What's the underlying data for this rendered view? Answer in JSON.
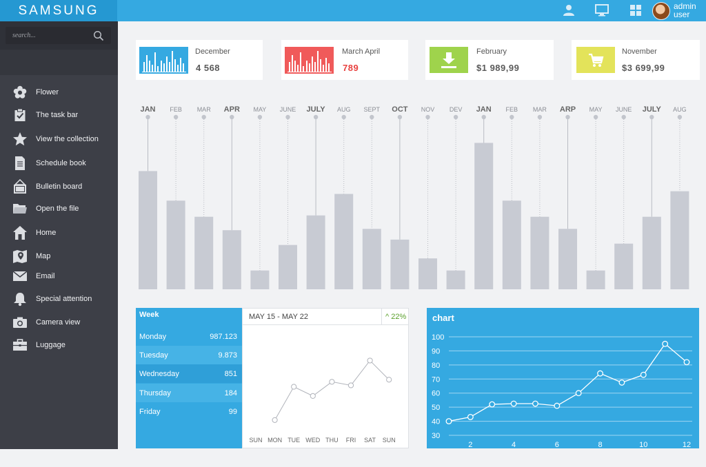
{
  "header": {
    "logo": "SAMSUNG",
    "user_label": "admin user",
    "icons": [
      "user-icon",
      "monitor-icon",
      "grid-icon"
    ]
  },
  "search": {
    "placeholder": "search..."
  },
  "sidebar": {
    "items": [
      {
        "label": "Flower",
        "icon": "flower-icon"
      },
      {
        "label": "The task bar",
        "icon": "clipboard-icon"
      },
      {
        "label": "View the collection",
        "icon": "star-icon"
      },
      {
        "label": "Schedule book",
        "icon": "document-icon"
      },
      {
        "label": "Bulletin board",
        "icon": "board-icon"
      },
      {
        "label": "Open the file",
        "icon": "folder-icon"
      },
      {
        "label": "Home",
        "icon": "home-icon"
      },
      {
        "label": "Map",
        "icon": "map-icon"
      },
      {
        "label": "Email",
        "icon": "mail-icon"
      },
      {
        "label": "Special attention",
        "icon": "bell-icon"
      },
      {
        "label": "Camera view",
        "icon": "camera-icon"
      },
      {
        "label": "Luggage",
        "icon": "briefcase-icon"
      }
    ]
  },
  "cards": [
    {
      "title": "December",
      "value": "4 568",
      "accent": "#35a9e1",
      "value_color": "#5a5a5a",
      "icon": "mini-bars-icon"
    },
    {
      "title": "March April",
      "value": "789",
      "accent": "#f05a5a",
      "value_color": "#e8413f",
      "icon": "mini-bars-icon"
    },
    {
      "title": "February",
      "value": "$1 989,99",
      "accent": "#9fd34c",
      "value_color": "#5a5a5a",
      "icon": "download-icon"
    },
    {
      "title": "November",
      "value": "$3 699,99",
      "accent": "#e3e35a",
      "value_color": "#5a5a5a",
      "icon": "cart-icon"
    }
  ],
  "chart_data": [
    {
      "type": "bar",
      "title": "",
      "categories": [
        "JAN",
        "FEB",
        "MAR",
        "APR",
        "MAY",
        "JUNE",
        "JULY",
        "AUG",
        "SEPT",
        "OCT",
        "NOV",
        "DEV",
        "JAN",
        "FEB",
        "MAR",
        "ARP",
        "MAY",
        "JUNE",
        "JULY",
        "AUG"
      ],
      "bold_categories": [
        "JAN",
        "APR",
        "JULY",
        "OCT",
        "ARP"
      ],
      "values": [
        88,
        66,
        54,
        44,
        14,
        33,
        55,
        71,
        45,
        37,
        23,
        14,
        109,
        66,
        54,
        45,
        14,
        34,
        54,
        73
      ],
      "ylim": [
        0,
        120
      ],
      "color": "#c8cbd3"
    },
    {
      "type": "line",
      "title": "MAY 15 - MAY 22",
      "change": "^ 22%",
      "categories": [
        "SUN",
        "MON",
        "TUE",
        "WED",
        "THU",
        "FRI",
        "SAT",
        "SUN"
      ],
      "values": [
        null,
        0,
        47,
        34,
        54,
        49,
        84,
        57
      ],
      "ylim": [
        -5,
        100
      ]
    },
    {
      "type": "line",
      "title": "chart",
      "x": [
        1,
        2,
        3,
        4,
        5,
        6,
        7,
        8,
        9,
        10,
        11,
        12
      ],
      "values": [
        40,
        43,
        52,
        52.5,
        52.5,
        51,
        60,
        74,
        67.5,
        73,
        95,
        82
      ],
      "xticks": [
        2,
        4,
        6,
        8,
        10,
        12
      ],
      "yticks": [
        30,
        40,
        50,
        60,
        70,
        80,
        90,
        100
      ],
      "ylim": [
        30,
        100
      ],
      "xlim": [
        1,
        12
      ]
    }
  ],
  "week": {
    "header": "Week",
    "rows": [
      {
        "day": "Monday",
        "value": "987.123"
      },
      {
        "day": "Tuesday",
        "value": "9.873"
      },
      {
        "day": "Wednesday",
        "value": "851"
      },
      {
        "day": "Thursday",
        "value": "184"
      },
      {
        "day": "Friday",
        "value": "99"
      }
    ],
    "row_colors": [
      "#35a9e1",
      "#46b3e6",
      "#2f9fd8",
      "#46b3e6",
      "#35a9e1"
    ]
  }
}
